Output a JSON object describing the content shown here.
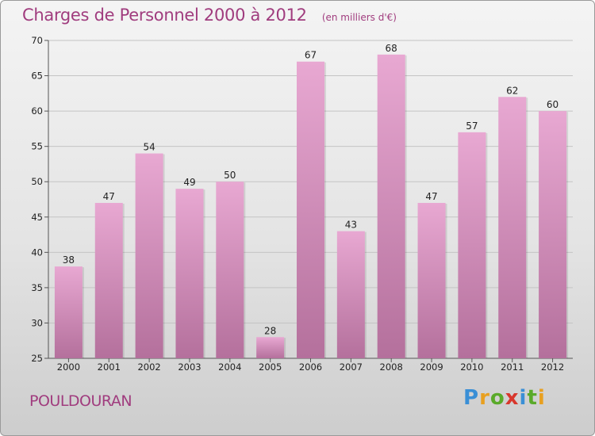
{
  "header": {
    "title": "Charges de Personnel 2000 à 2012",
    "subtitle": "(en milliers d'€)"
  },
  "footer": {
    "commune": "POULDOURAN",
    "logo_text": "Proxiti",
    "logo_letters": [
      {
        "ch": "P",
        "color": "#3a8fd6"
      },
      {
        "ch": "r",
        "color": "#e8a020"
      },
      {
        "ch": "o",
        "color": "#5aaa2a"
      },
      {
        "ch": "x",
        "color": "#d8372c"
      },
      {
        "ch": "i",
        "color": "#3a8fd6"
      },
      {
        "ch": "t",
        "color": "#5aaa2a"
      },
      {
        "ch": "i",
        "color": "#e8a020"
      }
    ]
  },
  "colors": {
    "accent": "#a03c7e",
    "bar_light": "#e8a8d2",
    "bar_dark": "#b4709c",
    "grid": "#c4c4c4"
  },
  "chart_data": {
    "type": "bar",
    "title": "Charges de Personnel 2000 à 2012",
    "subtitle": "(en milliers d'€)",
    "xlabel": "",
    "ylabel": "",
    "categories": [
      "2000",
      "2001",
      "2002",
      "2003",
      "2004",
      "2005",
      "2006",
      "2007",
      "2008",
      "2009",
      "2010",
      "2011",
      "2012"
    ],
    "values": [
      38,
      47,
      54,
      49,
      50,
      28,
      67,
      43,
      68,
      47,
      57,
      62,
      60
    ],
    "ylim": [
      25,
      70
    ],
    "yticks": [
      25,
      30,
      35,
      40,
      45,
      50,
      55,
      60,
      65,
      70
    ],
    "grid": true,
    "legend": "none"
  }
}
